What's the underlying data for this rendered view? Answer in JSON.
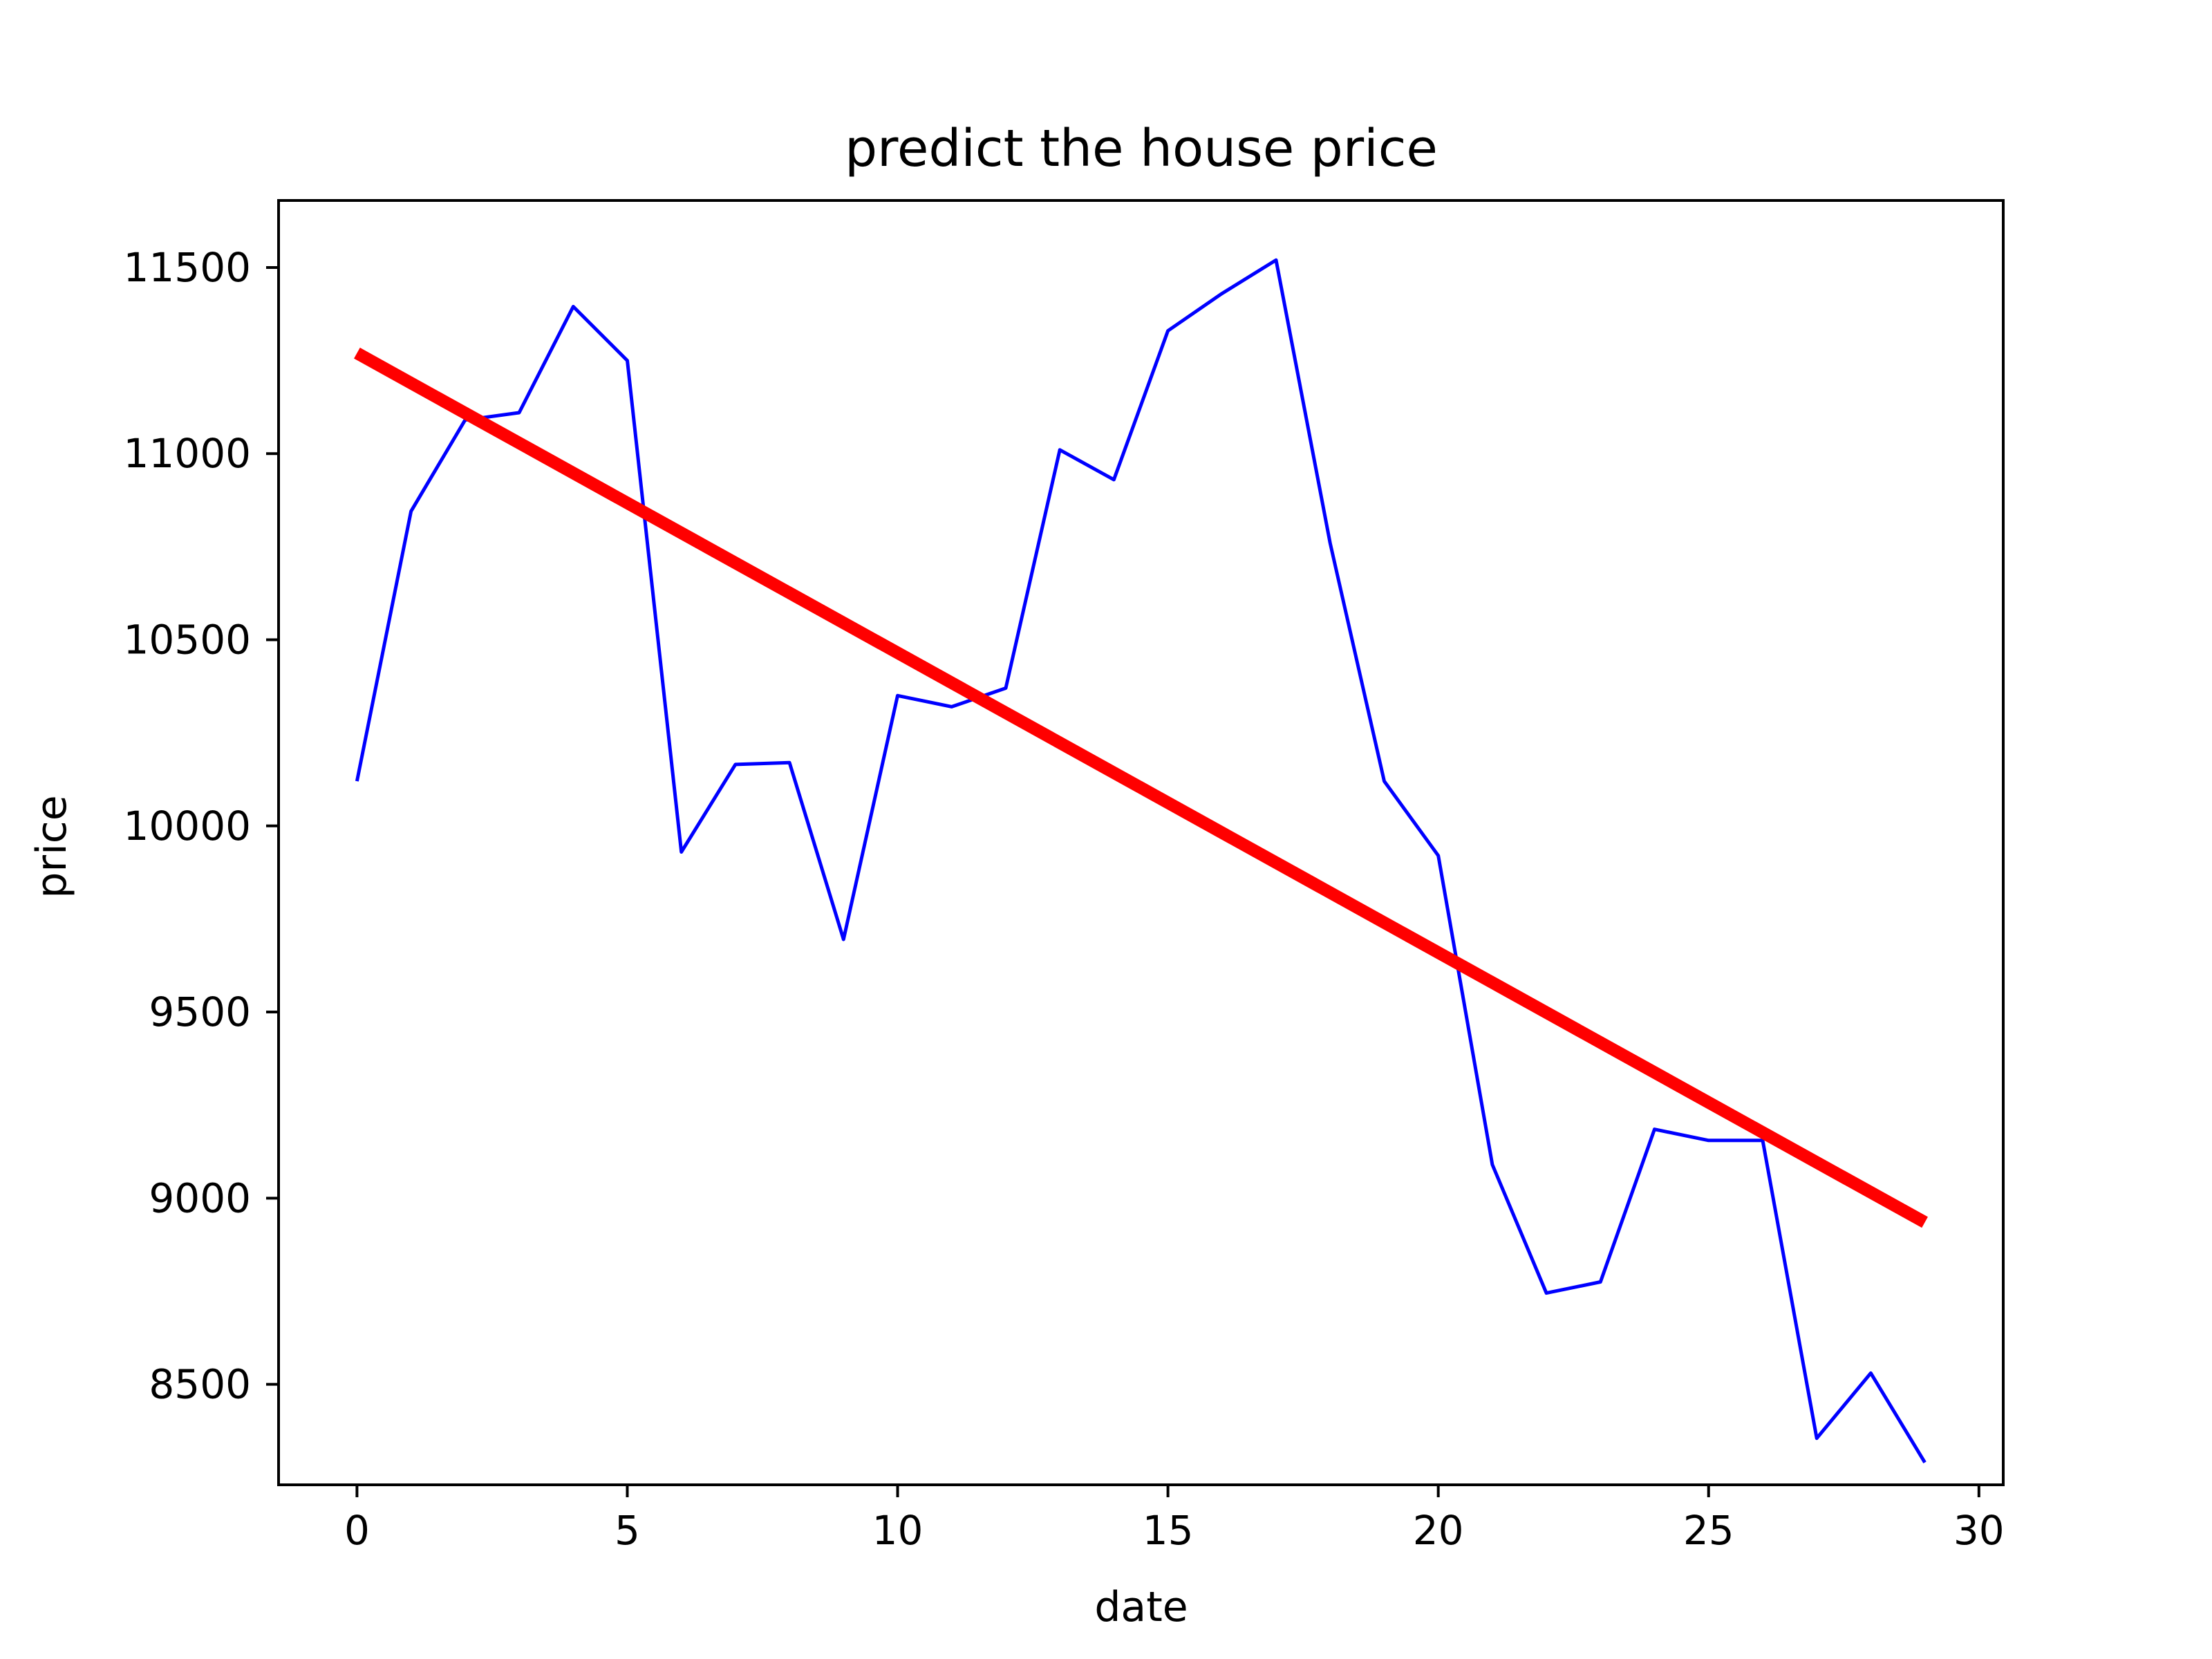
{
  "chart_data": {
    "type": "line",
    "title": "predict the house price",
    "xlabel": "date",
    "ylabel": "price",
    "xlim": [
      -1.45,
      30.45
    ],
    "ylim": [
      8230,
      11680
    ],
    "xticks": [
      0,
      5,
      10,
      15,
      20,
      25,
      30
    ],
    "yticks": [
      8500,
      9000,
      9500,
      10000,
      10500,
      11000,
      11500
    ],
    "grid": false,
    "legend": "none",
    "series": [
      {
        "color": "#0000ff",
        "x": [
          0,
          1,
          2,
          3,
          4,
          5,
          6,
          7,
          8,
          9,
          10,
          11,
          12,
          13,
          14,
          15,
          16,
          17,
          18,
          19,
          20,
          21,
          22,
          23,
          24,
          25,
          26,
          27,
          28,
          29
        ],
        "values": [
          10120,
          10845,
          11090,
          11110,
          11395,
          11250,
          9930,
          10165,
          10170,
          9695,
          10350,
          10320,
          10370,
          11010,
          10930,
          11330,
          11430,
          11520,
          10760,
          10120,
          9920,
          9090,
          8745,
          8775,
          9185,
          9155,
          9155,
          8355,
          8530,
          8290
        ]
      },
      {
        "color": "#ff0000",
        "x": [
          0,
          29
        ],
        "values": [
          11270,
          8935
        ]
      }
    ]
  }
}
